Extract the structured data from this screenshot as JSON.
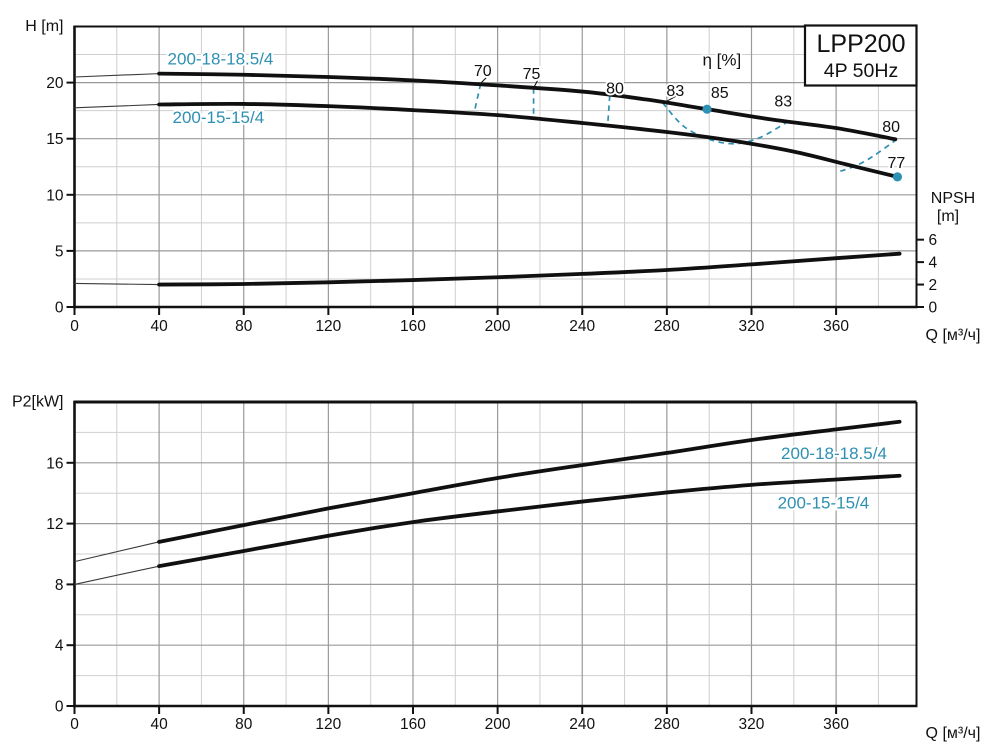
{
  "colors": {
    "accent": "#2e90b2",
    "curve": "#101010",
    "grid_major": "#9a9a9a",
    "grid_minor": "#cfcfcf",
    "axis": "#111111",
    "text": "#111111",
    "background": "#ffffff"
  },
  "title_box": {
    "line1": "LPP200",
    "line2": "4P  50Hz"
  },
  "chart_data": [
    {
      "id": "head-npsh-chart",
      "type": "line",
      "xlabel": "Q [м³/ч]",
      "ylabel": "H [m]",
      "y2label_line1": "NPSH",
      "y2label_line2": "[m]",
      "xlim": [
        0,
        398
      ],
      "ylim": [
        0,
        25
      ],
      "xticks": [
        0,
        40,
        80,
        120,
        160,
        200,
        240,
        280,
        320,
        360
      ],
      "yticks": [
        0,
        5,
        10,
        15,
        20
      ],
      "y2ticks": [
        0,
        2,
        4,
        6
      ],
      "x_minor_step": 20,
      "y_minor_step": 2.5,
      "grid": true,
      "series": [
        {
          "name": "200-18-18.5/4",
          "role": "head-curve",
          "solid_from": 40,
          "label_at": [
            69,
            22.1
          ],
          "points": [
            [
              0,
              20.5
            ],
            [
              40,
              20.8
            ],
            [
              80,
              20.7
            ],
            [
              120,
              20.5
            ],
            [
              160,
              20.2
            ],
            [
              200,
              19.75
            ],
            [
              240,
              19.2
            ],
            [
              270,
              18.5
            ],
            [
              300,
              17.6
            ],
            [
              330,
              16.7
            ],
            [
              360,
              15.95
            ],
            [
              388,
              14.95
            ]
          ]
        },
        {
          "name": "200-15-15/4",
          "role": "head-curve",
          "solid_from": 40,
          "label_at": [
            68,
            16.9
          ],
          "points": [
            [
              0,
              17.75
            ],
            [
              40,
              18.05
            ],
            [
              80,
              18.1
            ],
            [
              120,
              17.9
            ],
            [
              160,
              17.55
            ],
            [
              200,
              17.1
            ],
            [
              240,
              16.4
            ],
            [
              280,
              15.6
            ],
            [
              310,
              14.85
            ],
            [
              340,
              13.85
            ],
            [
              365,
              12.7
            ],
            [
              389,
              11.6
            ]
          ]
        },
        {
          "name": "NPSH",
          "role": "npsh-curve",
          "solid_from": 40,
          "label_at": null,
          "points": [
            [
              0,
              2.1
            ],
            [
              40,
              2.0
            ],
            [
              80,
              2.05
            ],
            [
              120,
              2.2
            ],
            [
              160,
              2.4
            ],
            [
              200,
              2.65
            ],
            [
              240,
              2.95
            ],
            [
              280,
              3.3
            ],
            [
              320,
              3.8
            ],
            [
              360,
              4.35
            ],
            [
              390,
              4.75
            ]
          ]
        }
      ],
      "efficiency": {
        "header": "η [%]",
        "header_at": [
          306,
          22.0
        ],
        "contours": [
          {
            "eta": 70,
            "points": [
              [
                192,
                19.9
              ],
              [
                189,
                17.4
              ]
            ]
          },
          {
            "eta": 75,
            "points": [
              [
                217,
                19.5
              ],
              [
                217,
                16.95
              ]
            ]
          },
          {
            "eta": 80,
            "points": [
              [
                253,
                18.85
              ],
              [
                252,
                16.15
              ]
            ]
          },
          {
            "eta": 83,
            "points": [
              [
                278,
                18.2
              ],
              [
                288,
                16.1
              ],
              [
                300,
                14.95
              ],
              [
                312,
                14.55
              ],
              [
                324,
                15.1
              ],
              [
                337,
                16.5
              ]
            ]
          },
          {
            "eta": 80,
            "points": [
              [
                362,
                12.1
              ],
              [
                370,
                12.65
              ],
              [
                378,
                13.5
              ],
              [
                388,
                14.85
              ]
            ]
          }
        ],
        "labels": [
          {
            "text": "70",
            "at": [
              193,
              21.1
            ],
            "leader": [
              [
                196,
                20.7
              ],
              [
                192.3,
                20.0
              ]
            ]
          },
          {
            "text": "75",
            "at": [
              216,
              20.8
            ],
            "leader": [
              [
                219.5,
                20.4
              ],
              [
                217.2,
                19.6
              ]
            ]
          },
          {
            "text": "80",
            "at": [
              255.5,
              19.5
            ],
            "leader": [
              [
                260,
                19.4
              ],
              [
                253.5,
                18.95
              ]
            ]
          },
          {
            "text": "83",
            "at": [
              284,
              19.3
            ],
            "leader": [
              [
                285.5,
                18.9
              ],
              [
                279.5,
                18.3
              ]
            ]
          },
          {
            "text": "85",
            "at": [
              305,
              19.1
            ],
            "leader": null
          },
          {
            "text": "83",
            "at": [
              335,
              18.35
            ],
            "leader": null
          },
          {
            "text": "80",
            "at": [
              386,
              16.1
            ],
            "leader": null
          },
          {
            "text": "77",
            "at": [
              388.5,
              12.9
            ],
            "leader": null
          }
        ],
        "dots": [
          [
            299,
            17.63
          ],
          [
            389,
            11.6
          ]
        ]
      }
    },
    {
      "id": "power-chart",
      "type": "line",
      "xlabel": "Q [м³/ч]",
      "ylabel": "P2[kW]",
      "xlim": [
        0,
        398
      ],
      "ylim": [
        0,
        20
      ],
      "xticks": [
        0,
        40,
        80,
        120,
        160,
        200,
        240,
        280,
        320,
        360
      ],
      "yticks": [
        0,
        4,
        8,
        12,
        16
      ],
      "x_minor_step": 20,
      "y_minor_step": 2,
      "grid": true,
      "series": [
        {
          "name": "200-18-18.5/4",
          "role": "power-curve",
          "solid_from": 40,
          "label_at": [
            359,
            16.6
          ],
          "points": [
            [
              0,
              9.5
            ],
            [
              40,
              10.8
            ],
            [
              80,
              11.9
            ],
            [
              120,
              13.0
            ],
            [
              160,
              14.0
            ],
            [
              200,
              15.0
            ],
            [
              240,
              15.85
            ],
            [
              280,
              16.65
            ],
            [
              320,
              17.5
            ],
            [
              360,
              18.2
            ],
            [
              390,
              18.7
            ]
          ]
        },
        {
          "name": "200-15-15/4",
          "role": "power-curve",
          "solid_from": 40,
          "label_at": [
            354,
            13.35
          ],
          "points": [
            [
              0,
              8.0
            ],
            [
              40,
              9.2
            ],
            [
              80,
              10.2
            ],
            [
              120,
              11.2
            ],
            [
              160,
              12.1
            ],
            [
              200,
              12.8
            ],
            [
              240,
              13.45
            ],
            [
              280,
              14.05
            ],
            [
              320,
              14.55
            ],
            [
              360,
              14.9
            ],
            [
              390,
              15.15
            ]
          ]
        }
      ]
    }
  ]
}
